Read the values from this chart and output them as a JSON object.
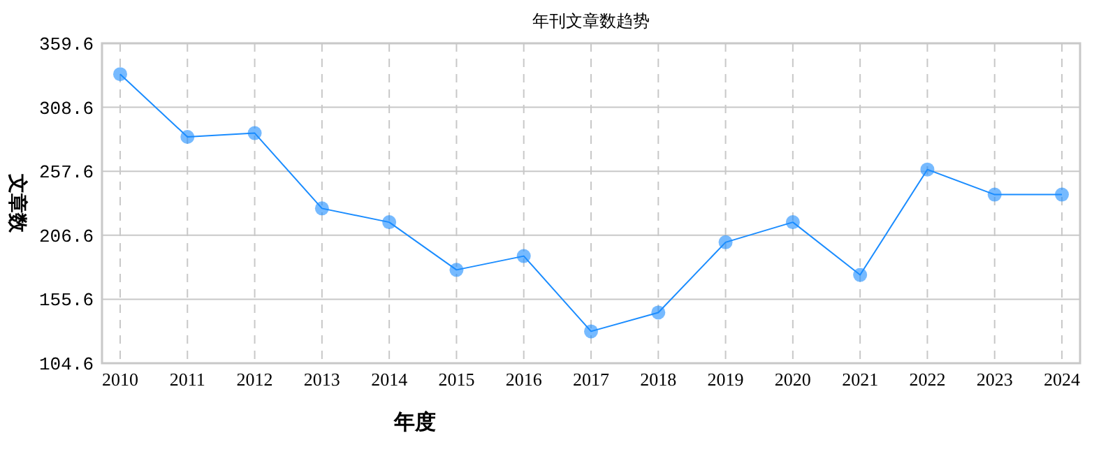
{
  "chart_data": {
    "type": "line",
    "title": "年刊文章数趋势",
    "xlabel": "年度",
    "ylabel": "文章数",
    "categories": [
      "2010",
      "2011",
      "2012",
      "2013",
      "2014",
      "2015",
      "2016",
      "2017",
      "2018",
      "2019",
      "2020",
      "2021",
      "2022",
      "2023",
      "2024"
    ],
    "series": [
      {
        "color": "#1a8cff",
        "values": [
          335,
          285,
          288,
          228,
          217,
          179,
          190,
          130,
          145,
          201,
          217,
          175,
          259,
          239,
          239
        ]
      }
    ],
    "ylim": [
      104.6,
      359.6
    ],
    "yticks": [
      104.6,
      155.6,
      206.6,
      257.6,
      308.6,
      359.6
    ],
    "grid": true,
    "marker": "circle",
    "line_style": "solid"
  }
}
